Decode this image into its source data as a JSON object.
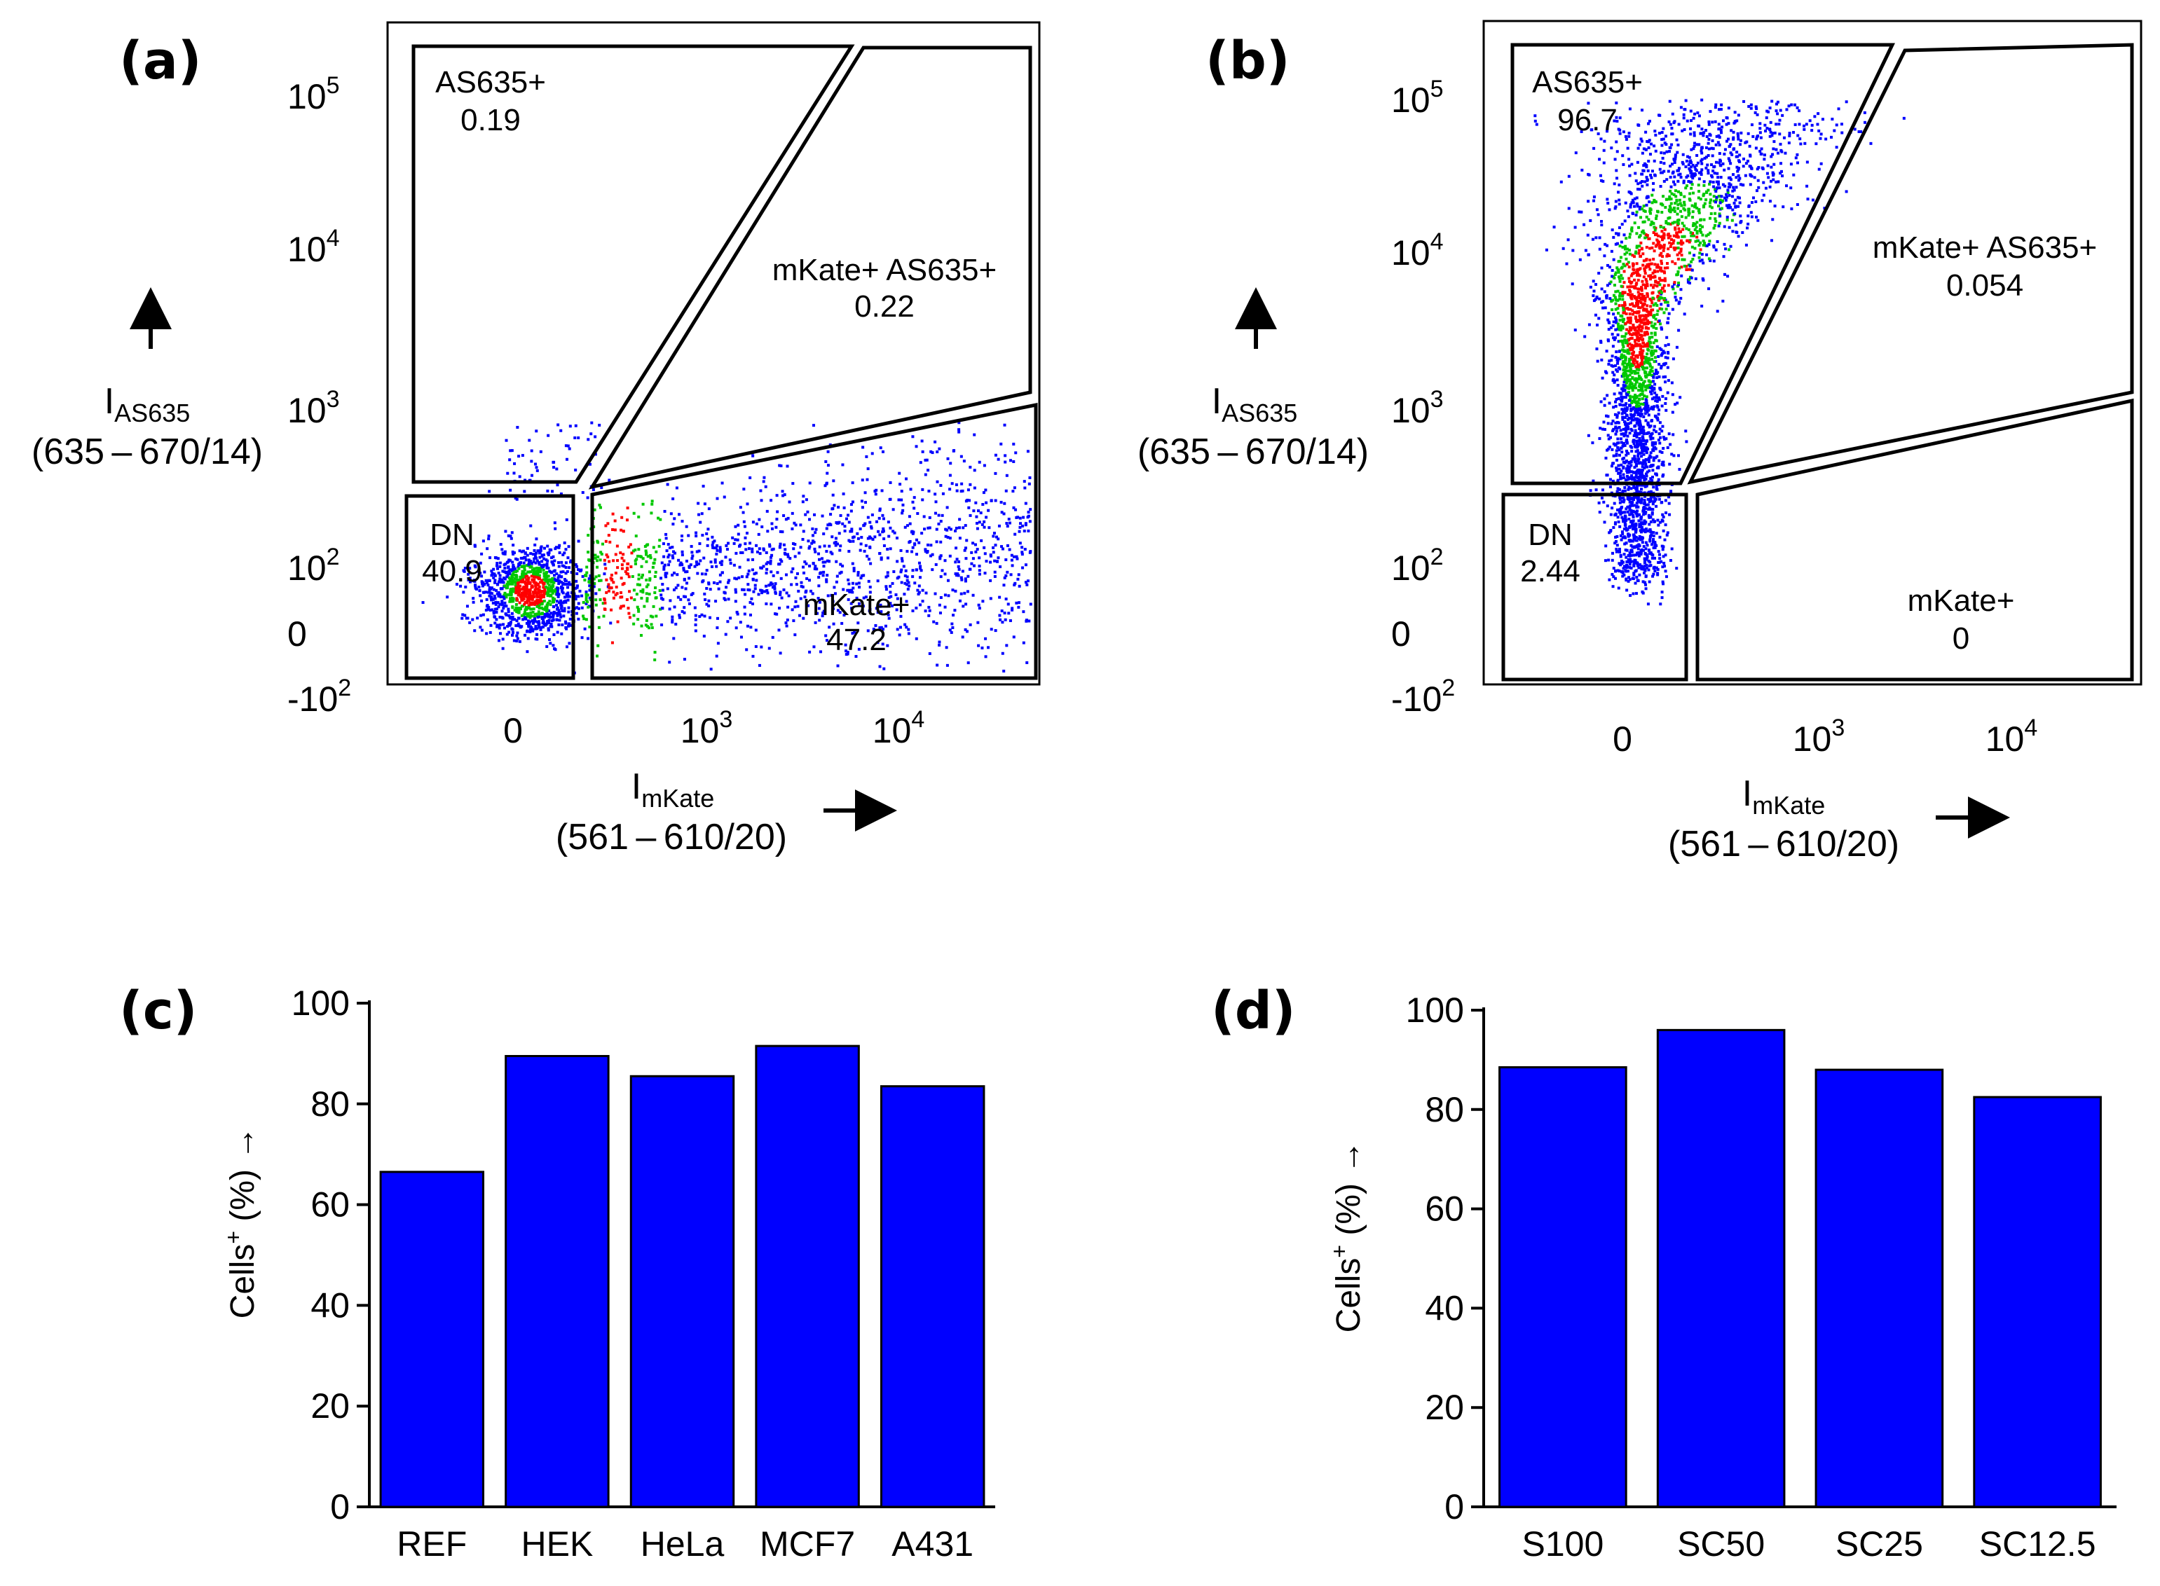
{
  "chart_data": [
    {
      "panel": "(a)",
      "type": "scatter",
      "description": "flow cytometry density dot plot",
      "x_axis": {
        "label_main": "I",
        "label_sub": "mKate",
        "label_filter": "(561 – 610/20)",
        "scale": "biexponential",
        "ticks": [
          {
            "base": "0",
            "exp": ""
          },
          {
            "base": "10",
            "exp": "3"
          },
          {
            "base": "10",
            "exp": "4"
          }
        ]
      },
      "y_axis": {
        "label_main": "I",
        "label_sub": "AS635",
        "label_filter": "(635 – 670/14)",
        "scale": "biexponential",
        "ticks": [
          {
            "base": "10",
            "exp": "5"
          },
          {
            "base": "10",
            "exp": "4"
          },
          {
            "base": "10",
            "exp": "3"
          },
          {
            "base": "10",
            "exp": "2"
          },
          {
            "base": "0",
            "exp": ""
          },
          {
            "base": "-10",
            "exp": "2"
          }
        ]
      },
      "gates": [
        {
          "name": "AS635+",
          "value": "0.19"
        },
        {
          "name": "mKate+ AS635+",
          "value": "0.22"
        },
        {
          "name": "DN",
          "value": "40.9"
        },
        {
          "name": "mKate+",
          "value": "47.2"
        }
      ]
    },
    {
      "panel": "(b)",
      "type": "scatter",
      "description": "flow cytometry density dot plot",
      "x_axis": {
        "label_main": "I",
        "label_sub": "mKate",
        "label_filter": "(561 – 610/20)",
        "scale": "biexponential",
        "ticks": [
          {
            "base": "0",
            "exp": ""
          },
          {
            "base": "10",
            "exp": "3"
          },
          {
            "base": "10",
            "exp": "4"
          }
        ]
      },
      "y_axis": {
        "label_main": "I",
        "label_sub": "AS635",
        "label_filter": "(635 – 670/14)",
        "scale": "biexponential",
        "ticks": [
          {
            "base": "10",
            "exp": "5"
          },
          {
            "base": "10",
            "exp": "4"
          },
          {
            "base": "10",
            "exp": "3"
          },
          {
            "base": "10",
            "exp": "2"
          },
          {
            "base": "0",
            "exp": ""
          },
          {
            "base": "-10",
            "exp": "2"
          }
        ]
      },
      "gates": [
        {
          "name": "AS635+",
          "value": "96.7"
        },
        {
          "name": "mKate+ AS635+",
          "value": "0.054"
        },
        {
          "name": "DN",
          "value": "2.44"
        },
        {
          "name": "mKate+",
          "value": "0"
        }
      ]
    },
    {
      "panel": "(c)",
      "type": "bar",
      "categories": [
        "REF",
        "HEK",
        "HeLa",
        "MCF7",
        "A431"
      ],
      "values": [
        66.5,
        89.5,
        85.5,
        91.5,
        83.5
      ],
      "ylabel_main": "Cells",
      "ylabel_sup": "+",
      "ylabel_unit": " (%) →",
      "ylim": [
        0,
        100
      ],
      "yticks": [
        0,
        20,
        40,
        60,
        80,
        100
      ],
      "bar_color": "#0000ff"
    },
    {
      "panel": "(d)",
      "type": "bar",
      "categories": [
        "S100",
        "SC50",
        "SC25",
        "SC12.5"
      ],
      "values": [
        88.5,
        96,
        88,
        82.5
      ],
      "ylabel_main": "Cells",
      "ylabel_sup": "+",
      "ylabel_unit": " (%) →",
      "ylim": [
        0,
        100
      ],
      "yticks": [
        0,
        20,
        40,
        60,
        80,
        100
      ],
      "bar_color": "#0000ff"
    }
  ],
  "colors": {
    "bar": "#0000ff",
    "density_low": "#0000ff",
    "density_mid": "#00c800",
    "density_high": "#ff0000"
  }
}
